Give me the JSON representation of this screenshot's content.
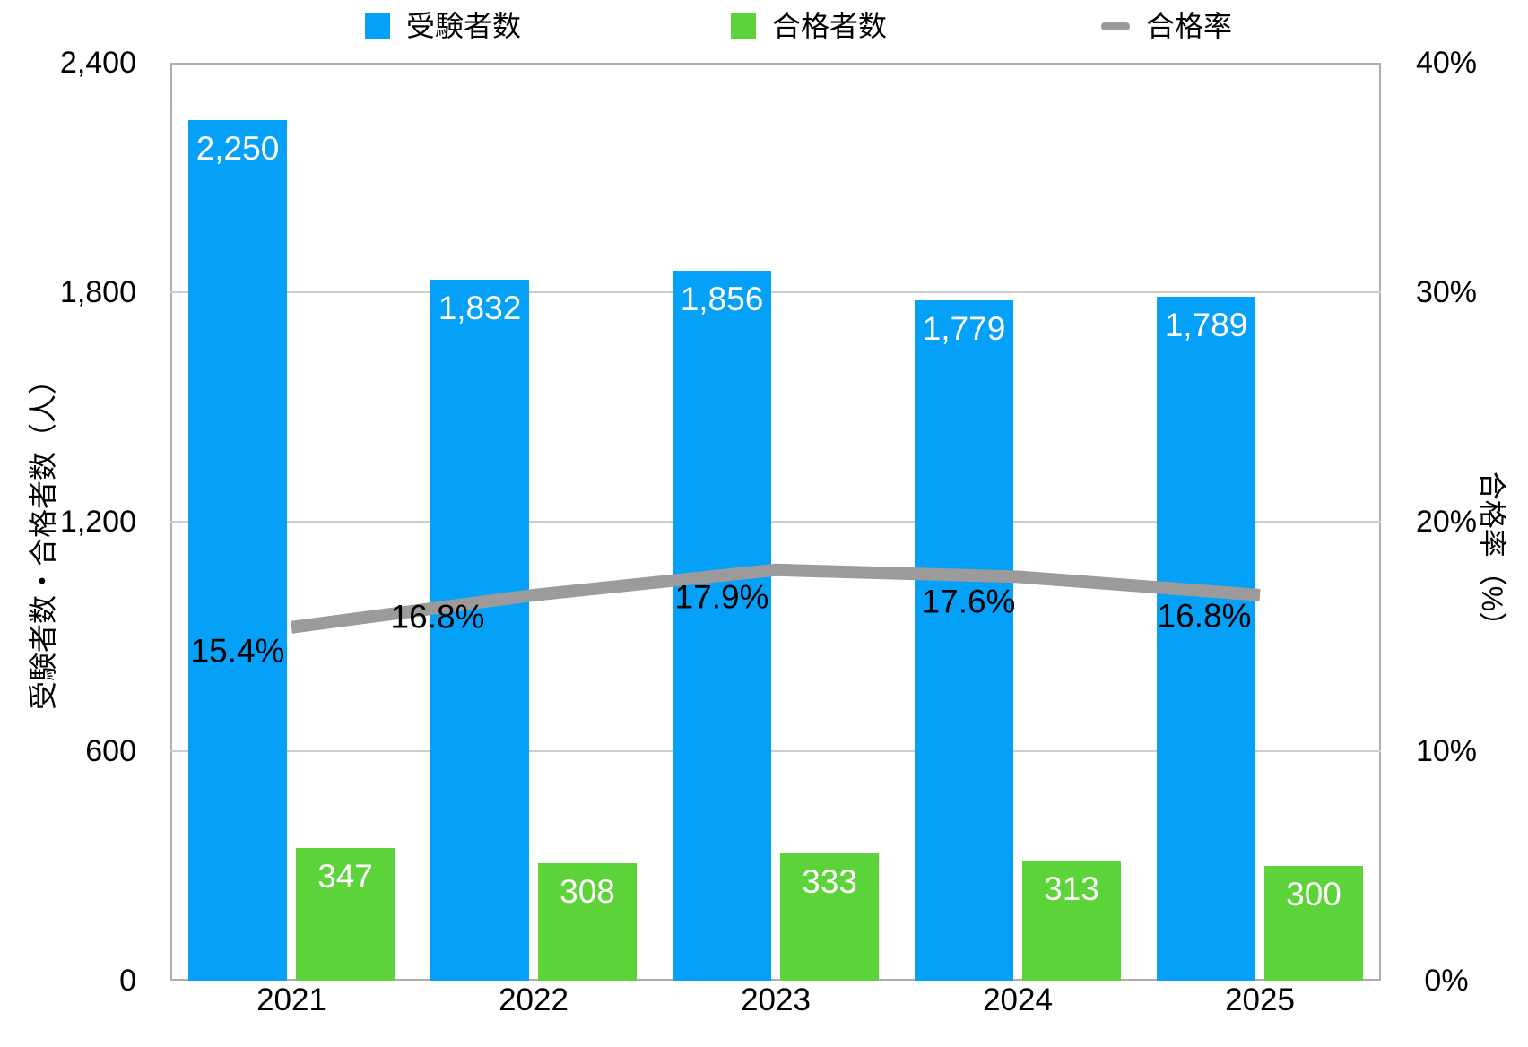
{
  "legend": [
    {
      "label": "受験者数",
      "swatch": "square",
      "color": "#05a0f7"
    },
    {
      "label": "合格者数",
      "swatch": "square",
      "color": "#5cd339"
    },
    {
      "label": "合格率",
      "swatch": "dash",
      "color": "#9b9b9b"
    }
  ],
  "axes": {
    "left_title": "受験者数・合格者数（人）",
    "right_title": "合格率（%）",
    "left_ticks": [
      "2,400",
      "1,800",
      "1,200",
      "600",
      "0"
    ],
    "right_ticks": [
      "40%",
      "30%",
      "20%",
      "10%",
      "0%"
    ]
  },
  "chart_data": {
    "type": "bar",
    "subtype": "grouped-bars-with-line",
    "categories": [
      "2021",
      "2022",
      "2023",
      "2024",
      "2025"
    ],
    "series": [
      {
        "name": "受験者数",
        "type": "bar",
        "axis": "left",
        "color": "#05a0f7",
        "values": [
          2250,
          1832,
          1856,
          1779,
          1789
        ],
        "labels": [
          "2,250",
          "1,832",
          "1,856",
          "1,779",
          "1,789"
        ],
        "label_color": "#ffffff"
      },
      {
        "name": "合格者数",
        "type": "bar",
        "axis": "left",
        "color": "#5cd339",
        "values": [
          347,
          308,
          333,
          313,
          300
        ],
        "labels": [
          "347",
          "308",
          "333",
          "313",
          "300"
        ],
        "label_color": "#ffffff"
      },
      {
        "name": "合格率",
        "type": "line",
        "axis": "right",
        "color": "#9b9b9b",
        "values": [
          15.4,
          16.8,
          17.9,
          17.6,
          16.8
        ],
        "labels": [
          "15.4%",
          "16.8%",
          "17.9%",
          "17.6%",
          "16.8%"
        ],
        "label_color": "#000000"
      }
    ],
    "left_axis": {
      "min": 0,
      "max": 2400,
      "step": 600,
      "label": "受験者数・合格者数（人）"
    },
    "right_axis": {
      "min": 0,
      "max": 40,
      "step": 10,
      "label": "合格率（%）",
      "unit": "%"
    },
    "grid": true,
    "legend_position": "top"
  }
}
